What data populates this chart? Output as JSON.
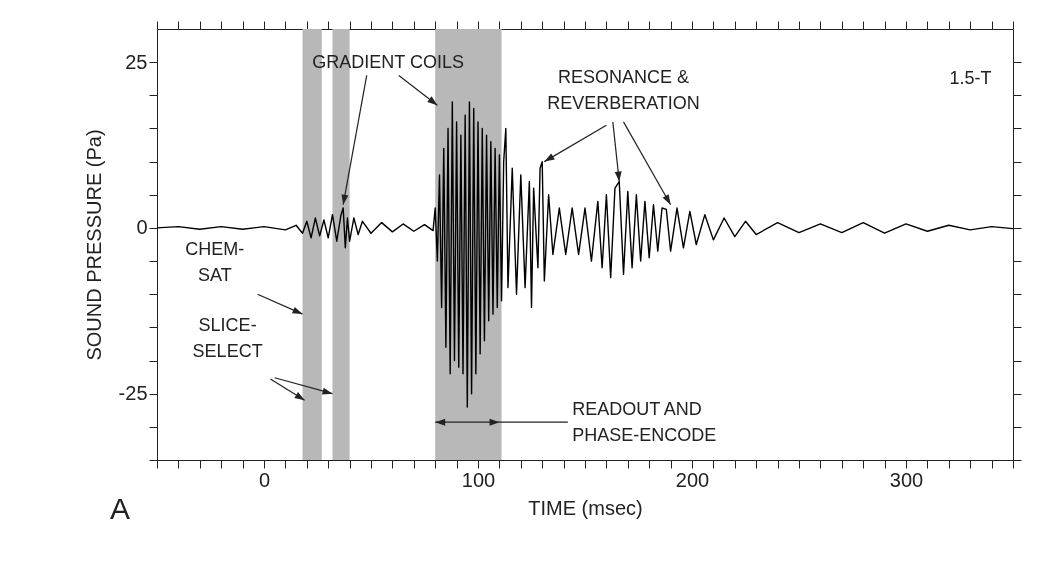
{
  "chart_data": {
    "type": "line",
    "xlabel": "TIME (msec)",
    "ylabel": "SOUND PRESSURE (Pa)",
    "xlim": [
      -50,
      350
    ],
    "ylim": [
      -35,
      30
    ],
    "xticks": [
      {
        "value": -50,
        "label": null
      },
      {
        "value": -40,
        "label": null
      },
      {
        "value": -30,
        "label": null
      },
      {
        "value": -20,
        "label": null
      },
      {
        "value": -10,
        "label": null
      },
      0,
      {
        "value": 10,
        "label": null
      },
      {
        "value": 20,
        "label": null
      },
      {
        "value": 30,
        "label": null
      },
      {
        "value": 40,
        "label": null
      },
      {
        "value": 50,
        "label": null
      },
      {
        "value": 60,
        "label": null
      },
      {
        "value": 70,
        "label": null
      },
      {
        "value": 80,
        "label": null
      },
      {
        "value": 90,
        "label": null
      },
      100,
      {
        "value": 110,
        "label": null
      },
      {
        "value": 120,
        "label": null
      },
      {
        "value": 130,
        "label": null
      },
      {
        "value": 140,
        "label": null
      },
      {
        "value": 150,
        "label": null
      },
      {
        "value": 160,
        "label": null
      },
      {
        "value": 170,
        "label": null
      },
      {
        "value": 180,
        "label": null
      },
      {
        "value": 190,
        "label": null
      },
      200,
      {
        "value": 210,
        "label": null
      },
      {
        "value": 220,
        "label": null
      },
      {
        "value": 230,
        "label": null
      },
      {
        "value": 240,
        "label": null
      },
      {
        "value": 250,
        "label": null
      },
      {
        "value": 260,
        "label": null
      },
      {
        "value": 270,
        "label": null
      },
      {
        "value": 280,
        "label": null
      },
      {
        "value": 290,
        "label": null
      },
      300,
      {
        "value": 310,
        "label": null
      },
      {
        "value": 320,
        "label": null
      },
      {
        "value": 330,
        "label": null
      },
      {
        "value": 340,
        "label": null
      },
      {
        "value": 350,
        "label": null
      }
    ],
    "yticks": [
      {
        "value": -35,
        "label": null
      },
      {
        "value": -30,
        "label": null
      },
      -25,
      {
        "value": -20,
        "label": null
      },
      {
        "value": -15,
        "label": null
      },
      {
        "value": -10,
        "label": null
      },
      {
        "value": -5,
        "label": null
      },
      0,
      {
        "value": 5,
        "label": null
      },
      {
        "value": 10,
        "label": null
      },
      {
        "value": 15,
        "label": null
      },
      {
        "value": 20,
        "label": null
      },
      25
    ],
    "x": [
      -50,
      -40,
      -30,
      -20,
      -10,
      0,
      10,
      15,
      18,
      20,
      22,
      24,
      26,
      28,
      30,
      32,
      34,
      36,
      37,
      38,
      39,
      40,
      42,
      44,
      46,
      50,
      55,
      60,
      65,
      70,
      75,
      79,
      80,
      81,
      82,
      83,
      84,
      85,
      86,
      87,
      88,
      89,
      90,
      91,
      92,
      93,
      94,
      95,
      96,
      97,
      98,
      99,
      100,
      101,
      102,
      103,
      104,
      105,
      106,
      107,
      108,
      109,
      110,
      111,
      112,
      113,
      114,
      116,
      118,
      120,
      122,
      124,
      125,
      126,
      128,
      129,
      130,
      131,
      133,
      135,
      138,
      141,
      144,
      147,
      150,
      153,
      156,
      158,
      160,
      162,
      164,
      166,
      168,
      170,
      172,
      174,
      176,
      178,
      180,
      182,
      184,
      186,
      188,
      190,
      193,
      196,
      199,
      202,
      206,
      210,
      215,
      220,
      225,
      230,
      240,
      250,
      260,
      270,
      280,
      290,
      300,
      310,
      320,
      330,
      340,
      350
    ],
    "series": [
      {
        "color": "#000000",
        "values": [
          0,
          0.2,
          -0.2,
          0.2,
          -0.2,
          0.2,
          -0.3,
          0.4,
          -0.8,
          1,
          -1.5,
          1.5,
          -1.2,
          1.2,
          -1.5,
          2,
          -2,
          2,
          3,
          -3,
          1.5,
          -2,
          1.5,
          -1,
          1,
          -0.8,
          0.8,
          -0.6,
          0.6,
          -0.5,
          0.5,
          -0.4,
          3,
          -5,
          8,
          -12,
          12,
          -18,
          15,
          -22,
          19,
          -20,
          16,
          -21,
          14,
          -22,
          17,
          -27,
          19,
          -25,
          18,
          -22,
          16,
          -19,
          15,
          -17,
          14,
          -14,
          13,
          -13,
          12,
          -12,
          11,
          -11,
          10,
          15,
          -9,
          9,
          -10,
          8,
          -9,
          7,
          -12,
          6,
          -6,
          9,
          10,
          -8,
          5,
          -4,
          3,
          -4,
          3,
          -4,
          3,
          -5,
          4,
          -6,
          5,
          -7.5,
          6,
          7,
          -7,
          5.5,
          -6,
          5,
          -5,
          4,
          -4.5,
          3.5,
          -3.5,
          3,
          2.8,
          -3.5,
          3,
          -3,
          2.5,
          -2.5,
          2,
          -1.8,
          1.5,
          -1.3,
          1,
          -1,
          0.8,
          -0.7,
          0.6,
          -0.7,
          0.8,
          -0.8,
          0.6,
          -0.5,
          0.4,
          -0.3,
          0.2,
          -0.1
        ]
      }
    ],
    "bands": [
      {
        "axis": "x",
        "from": 18,
        "to": 27,
        "color": "#b8b8b8"
      },
      {
        "axis": "x",
        "from": 32,
        "to": 40,
        "color": "#b8b8b8"
      },
      {
        "axis": "x",
        "from": 80,
        "to": 111,
        "color": "#b8b8b8"
      }
    ],
    "annotations": [
      {
        "text": "GRADIENT COILS",
        "x": 37,
        "y": 3.5
      },
      {
        "text": "RESONANCE &\nREVERBERATION",
        "x": 166,
        "y": 7
      },
      {
        "text": "CHEM-\nSAT",
        "x": 18,
        "y": -13
      },
      {
        "text": "SLICE-\nSELECT",
        "x": 19,
        "y": -26
      },
      {
        "text": "READOUT AND\nPHASE-ENCODE",
        "x": 80,
        "y": -29.3
      },
      "1.5-T",
      "A"
    ]
  }
}
